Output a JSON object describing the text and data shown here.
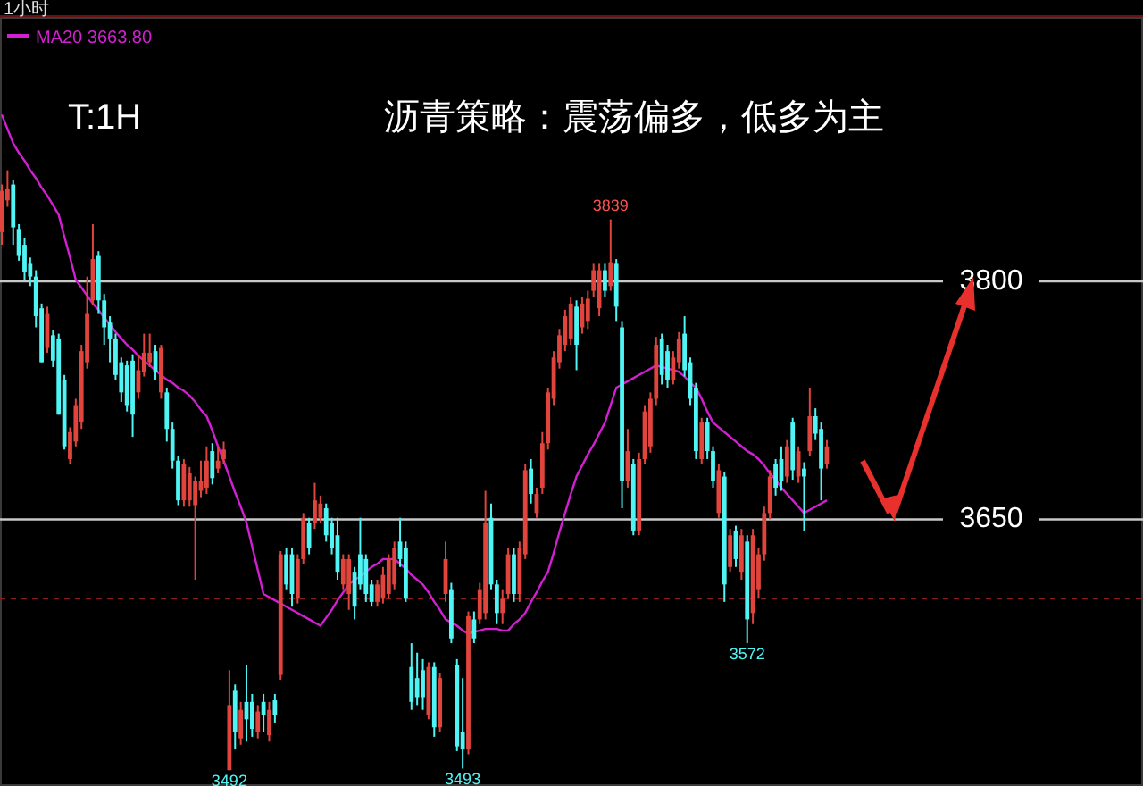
{
  "chart_data": {
    "type": "candlestick",
    "title": "沥青策略：震荡偏多，低多为主",
    "annotations": [
      "1小时",
      "T:1H",
      {
        "text": "3839",
        "y": 3839
      },
      {
        "text": "3492",
        "y": 3492
      },
      {
        "text": "3493",
        "y": 3493
      },
      {
        "text": "3572",
        "y": 3572
      }
    ],
    "categories": [
      null,
      null,
      null,
      null,
      null,
      null,
      null,
      null,
      null,
      null,
      null,
      null,
      null,
      null,
      null,
      null,
      null,
      null,
      null,
      null,
      null,
      null,
      null,
      null,
      null,
      null,
      null,
      null,
      null,
      null,
      null,
      null,
      null,
      null,
      null,
      null,
      null,
      null,
      null,
      null,
      null,
      null,
      null,
      null,
      null,
      null,
      null,
      null,
      null,
      null,
      null,
      null,
      null,
      null,
      null,
      null,
      null,
      null,
      null,
      null,
      null,
      null,
      null,
      null,
      null,
      null,
      null,
      null,
      null,
      null,
      null,
      null,
      null,
      null,
      null,
      null,
      null,
      null,
      null,
      null,
      null,
      null,
      null,
      null,
      null,
      null,
      null,
      null,
      null,
      null,
      null,
      null,
      null,
      null,
      null,
      null,
      null,
      null,
      null,
      null,
      null,
      null,
      null,
      null,
      null,
      null,
      null,
      null,
      null,
      null,
      null,
      null,
      null,
      null,
      null,
      null,
      null,
      null,
      null,
      null,
      null,
      null,
      null,
      null,
      null,
      null,
      null,
      null,
      null,
      null,
      null,
      null,
      null,
      null,
      null,
      null,
      null,
      null,
      null,
      null,
      null,
      null,
      null,
      null,
      null,
      null
    ],
    "ohlc": [
      [
        3831,
        3861,
        3823,
        3857
      ],
      [
        3851,
        3870,
        3847,
        3858
      ],
      [
        3861,
        3864,
        3823,
        3834
      ],
      [
        3833,
        3836,
        3813,
        3816
      ],
      [
        3823,
        3827,
        3801,
        3806
      ],
      [
        3811,
        3815,
        3797,
        3803
      ],
      [
        3803,
        3807,
        3771,
        3778
      ],
      [
        3783,
        3786,
        3749,
        3749
      ],
      [
        3758,
        3784,
        3755,
        3780
      ],
      [
        3766,
        3769,
        3746,
        3750
      ],
      [
        3764,
        3767,
        3716,
        3716
      ],
      [
        3738,
        3741,
        3694,
        3696
      ],
      [
        3688,
        3708,
        3685,
        3705
      ],
      [
        3699,
        3726,
        3696,
        3722
      ],
      [
        3711,
        3760,
        3707,
        3756
      ],
      [
        3749,
        3803,
        3745,
        3780
      ],
      [
        3788,
        3836,
        3785,
        3814
      ],
      [
        3816,
        3819,
        3780,
        3788
      ],
      [
        3788,
        3792,
        3760,
        3771
      ],
      [
        3774,
        3778,
        3749,
        3764
      ],
      [
        3764,
        3767,
        3738,
        3741
      ],
      [
        3749,
        3752,
        3724,
        3730
      ],
      [
        3747,
        3750,
        3718,
        3722
      ],
      [
        3750,
        3754,
        3702,
        3716
      ],
      [
        3730,
        3754,
        3726,
        3744
      ],
      [
        3743,
        3767,
        3740,
        3755
      ],
      [
        3749,
        3767,
        3746,
        3755
      ],
      [
        3756,
        3760,
        3738,
        3743
      ],
      [
        3730,
        3760,
        3726,
        3758
      ],
      [
        3730,
        3733,
        3699,
        3707
      ],
      [
        3707,
        3711,
        3682,
        3687
      ],
      [
        3687,
        3690,
        3659,
        3662
      ],
      [
        3662,
        3688,
        3658,
        3685
      ],
      [
        3662,
        3683,
        3658,
        3679
      ],
      [
        3659,
        3677,
        3612,
        3674
      ],
      [
        3668,
        3687,
        3664,
        3674
      ],
      [
        3670,
        3696,
        3666,
        3687
      ],
      [
        3693,
        3698,
        3672,
        3676
      ],
      [
        3682,
        3696,
        3679,
        3687
      ],
      [
        3688,
        3699,
        3685,
        3694
      ],
      [
        3492,
        3555,
        3492,
        3533
      ],
      [
        3542,
        3546,
        3505,
        3516
      ],
      [
        3512,
        3535,
        3508,
        3530
      ],
      [
        3535,
        3558,
        3510,
        3524
      ],
      [
        3535,
        3540,
        3513,
        3518
      ],
      [
        3516,
        3533,
        3512,
        3529
      ],
      [
        3535,
        3540,
        3516,
        3527
      ],
      [
        3514,
        3535,
        3510,
        3530
      ],
      [
        3536,
        3540,
        3522,
        3527
      ],
      [
        3552,
        3630,
        3549,
        3628
      ],
      [
        3628,
        3632,
        3606,
        3609
      ],
      [
        3628,
        3632,
        3595,
        3603
      ],
      [
        3600,
        3628,
        3597,
        3625
      ],
      [
        3625,
        3654,
        3622,
        3651
      ],
      [
        3648,
        3651,
        3628,
        3632
      ],
      [
        3648,
        3673,
        3644,
        3662
      ],
      [
        3651,
        3665,
        3648,
        3660
      ],
      [
        3657,
        3660,
        3636,
        3640
      ],
      [
        3648,
        3651,
        3628,
        3632
      ],
      [
        3640,
        3651,
        3612,
        3617
      ],
      [
        3609,
        3628,
        3606,
        3625
      ],
      [
        3603,
        3628,
        3593,
        3625
      ],
      [
        3617,
        3620,
        3587,
        3595
      ],
      [
        3628,
        3651,
        3606,
        3609
      ],
      [
        3625,
        3628,
        3598,
        3603
      ],
      [
        3609,
        3612,
        3595,
        3598
      ],
      [
        3598,
        3612,
        3595,
        3609
      ],
      [
        3600,
        3620,
        3597,
        3615
      ],
      [
        3603,
        3628,
        3600,
        3625
      ],
      [
        3609,
        3636,
        3606,
        3632
      ],
      [
        3636,
        3651,
        3620,
        3625
      ],
      [
        3632,
        3636,
        3598,
        3600
      ],
      [
        3557,
        3572,
        3530,
        3535
      ],
      [
        3550,
        3566,
        3533,
        3538
      ],
      [
        3555,
        3562,
        3530,
        3538
      ],
      [
        3527,
        3560,
        3524,
        3557
      ],
      [
        3557,
        3560,
        3513,
        3519
      ],
      [
        3519,
        3553,
        3516,
        3550
      ],
      [
        3603,
        3636,
        3598,
        3625
      ],
      [
        3606,
        3610,
        3572,
        3575
      ],
      [
        3558,
        3562,
        3504,
        3507
      ],
      [
        3516,
        3550,
        3493,
        3505
      ],
      [
        3505,
        3592,
        3502,
        3589
      ],
      [
        3587,
        3592,
        3572,
        3575
      ],
      [
        3587,
        3610,
        3584,
        3606
      ],
      [
        3591,
        3668,
        3587,
        3648
      ],
      [
        3651,
        3660,
        3606,
        3609
      ],
      [
        3609,
        3612,
        3584,
        3591
      ],
      [
        3591,
        3606,
        3584,
        3600
      ],
      [
        3603,
        3632,
        3600,
        3628
      ],
      [
        3628,
        3632,
        3598,
        3603
      ],
      [
        3603,
        3636,
        3598,
        3632
      ],
      [
        3628,
        3685,
        3625,
        3681
      ],
      [
        3682,
        3688,
        3660,
        3666
      ],
      [
        3654,
        3670,
        3651,
        3666
      ],
      [
        3670,
        3705,
        3666,
        3698
      ],
      [
        3698,
        3733,
        3694,
        3730
      ],
      [
        3726,
        3756,
        3722,
        3752
      ],
      [
        3749,
        3770,
        3745,
        3766
      ],
      [
        3760,
        3782,
        3756,
        3778
      ],
      [
        3764,
        3790,
        3760,
        3786
      ],
      [
        3784,
        3788,
        3744,
        3760
      ],
      [
        3771,
        3790,
        3767,
        3786
      ],
      [
        3775,
        3794,
        3770,
        3789
      ],
      [
        3794,
        3811,
        3790,
        3807
      ],
      [
        3783,
        3811,
        3778,
        3807
      ],
      [
        3807,
        3811,
        3790,
        3794
      ],
      [
        3797,
        3839,
        3794,
        3812
      ],
      [
        3811,
        3814,
        3775,
        3784
      ],
      [
        3771,
        3775,
        3657,
        3674
      ],
      [
        3674,
        3707,
        3670,
        3693
      ],
      [
        3685,
        3688,
        3640,
        3643
      ],
      [
        3643,
        3692,
        3640,
        3688
      ],
      [
        3688,
        3722,
        3685,
        3718
      ],
      [
        3696,
        3730,
        3692,
        3726
      ],
      [
        3726,
        3765,
        3722,
        3760
      ],
      [
        3764,
        3767,
        3735,
        3741
      ],
      [
        3756,
        3760,
        3733,
        3738
      ],
      [
        3738,
        3756,
        3735,
        3752
      ],
      [
        3749,
        3768,
        3745,
        3764
      ],
      [
        3767,
        3778,
        3740,
        3744
      ],
      [
        3749,
        3752,
        3722,
        3726
      ],
      [
        3733,
        3736,
        3688,
        3693
      ],
      [
        3688,
        3714,
        3685,
        3711
      ],
      [
        3711,
        3714,
        3688,
        3693
      ],
      [
        3693,
        3696,
        3670,
        3674
      ],
      [
        3654,
        3685,
        3651,
        3681
      ],
      [
        3677,
        3680,
        3598,
        3609
      ],
      [
        3620,
        3644,
        3617,
        3640
      ],
      [
        3643,
        3646,
        3620,
        3625
      ],
      [
        3617,
        3644,
        3612,
        3640
      ],
      [
        3636,
        3640,
        3572,
        3587
      ],
      [
        3591,
        3644,
        3584,
        3640
      ],
      [
        3606,
        3632,
        3600,
        3628
      ],
      [
        3628,
        3658,
        3624,
        3654
      ],
      [
        3654,
        3681,
        3650,
        3677
      ],
      [
        3685,
        3688,
        3665,
        3670
      ],
      [
        3688,
        3696,
        3668,
        3674
      ],
      [
        3677,
        3700,
        3673,
        3696
      ],
      [
        3711,
        3714,
        3675,
        3681
      ],
      [
        3677,
        3696,
        3673,
        3693
      ],
      [
        3682,
        3686,
        3643,
        3677
      ],
      [
        3693,
        3733,
        3690,
        3715
      ],
      [
        3715,
        3720,
        3700,
        3704
      ],
      [
        3707,
        3711,
        3662,
        3682
      ],
      [
        3685,
        3700,
        3682,
        3696
      ]
    ],
    "series": [
      {
        "name": "MA20 3663.80",
        "type": "line",
        "color": "#d21fd2",
        "values": [
          3905,
          3896,
          3887,
          3881,
          3876,
          3870,
          3865,
          3859,
          3854,
          3848,
          3842,
          3828,
          3815,
          3801,
          3796,
          3791,
          3786,
          3782,
          3777,
          3773,
          3768,
          3764,
          3760,
          3757,
          3753,
          3750,
          3747,
          3744,
          3741,
          3738,
          3736,
          3733,
          3731,
          3728,
          3724,
          3719,
          3715,
          3706,
          3696,
          3687,
          3677,
          3667,
          3658,
          3648,
          3633,
          3618,
          3603,
          3601,
          3599,
          3597,
          3595,
          3593,
          3591,
          3589,
          3587,
          3585,
          3583,
          3588,
          3593,
          3599,
          3604,
          3609,
          3612,
          3614,
          3617,
          3620,
          3622,
          3625,
          3625,
          3625,
          3622,
          3619,
          3615,
          3612,
          3609,
          3604,
          3598,
          3593,
          3587,
          3585,
          3583,
          3580,
          3578,
          3579,
          3580,
          3581,
          3581,
          3581,
          3580,
          3580,
          3584,
          3587,
          3591,
          3598,
          3604,
          3611,
          3617,
          3629,
          3642,
          3654,
          3666,
          3677,
          3684,
          3691,
          3697,
          3704,
          3711,
          3722,
          3733,
          3735,
          3737,
          3739,
          3741,
          3743,
          3745,
          3747,
          3746,
          3745,
          3744,
          3743,
          3740,
          3736,
          3733,
          3726,
          3718,
          3711,
          3708,
          3705,
          3702,
          3699,
          3696,
          3693,
          3691,
          3688,
          3684,
          3679,
          3675,
          3670,
          3666,
          3662,
          3658,
          3654,
          3656,
          3658,
          3660,
          3662
        ]
      }
    ],
    "ylim": [
      3482,
      3966
    ],
    "yticks": [
      3800,
      3650
    ],
    "grid": "y",
    "ref_lines": [
      {
        "axis": "y",
        "value": 3600,
        "color": "#8b1c1c",
        "line_style": "dashed"
      }
    ],
    "tick_labels": "y",
    "legend": "top left"
  }
}
